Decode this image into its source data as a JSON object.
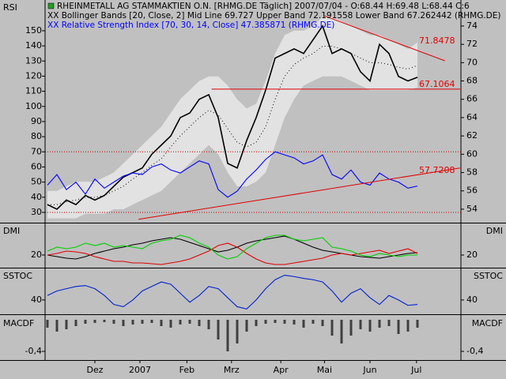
{
  "chart_data": [
    {
      "type": "line",
      "label": "RSI",
      "title": "RHEINMETALL AG STAMMAKTIEN O.N. [RHMG.DE  Täglich] 2007/07/04 - O:68.44 H:69.48 L:68.44 C:6",
      "subtitle": "XX Bollinger Bands [20, Close, 2] Mid Line 69.727  Upper Band 72.191558  Lower Band 67.262442  (RHMG.DE)",
      "subtitle2": "XX Relative Strength Index [70, 30, 14, Close] 47.385871 (RHMG.DE)",
      "x": [
        0,
        1,
        2,
        3,
        4,
        5,
        6,
        7,
        8,
        9,
        10,
        11,
        12,
        13,
        14,
        15,
        16,
        17,
        18,
        19,
        20,
        21,
        22,
        23,
        24,
        25,
        26,
        27,
        28,
        29,
        30,
        31,
        32,
        33,
        34,
        35,
        36,
        37,
        38,
        39
      ],
      "xlim": [
        0,
        39
      ],
      "xticks": [
        {
          "value": 5,
          "label": "Dez"
        },
        {
          "value": 9.75,
          "label": "2007"
        },
        {
          "value": 14.7,
          "label": "Feb"
        },
        {
          "value": 19.4,
          "label": "Mrz"
        },
        {
          "value": 24.6,
          "label": "Apr"
        },
        {
          "value": 29.2,
          "label": "Mai"
        },
        {
          "value": 34,
          "label": "Jun"
        },
        {
          "value": 38.9,
          "label": "Jul"
        }
      ],
      "ylim": [
        23.2,
        170.3
      ],
      "yticks": [
        30,
        40,
        50,
        60,
        70,
        80,
        90,
        100,
        110,
        120,
        130,
        140,
        150
      ],
      "y2lim": [
        52.53,
        76.84
      ],
      "y2ticks": [
        54,
        56,
        58,
        60,
        62,
        64,
        66,
        68,
        70,
        72,
        74
      ],
      "bands": {
        "color": "#e2e2e2",
        "axis": "y2",
        "upper": [
          56,
          56,
          56.5,
          57,
          57,
          57,
          57.5,
          58,
          59,
          60,
          61,
          62,
          63,
          64.5,
          66,
          67,
          68,
          68.5,
          68.5,
          67.5,
          66,
          65,
          65.5,
          68,
          71,
          73,
          73.5,
          73.5,
          74,
          75,
          75,
          74.5,
          74,
          73.5,
          73,
          73,
          72.5,
          72,
          71.5,
          72.2
        ],
        "lower": [
          53,
          53,
          53,
          53,
          53.5,
          53.5,
          53.5,
          54,
          54,
          54.5,
          55,
          55.5,
          56,
          57,
          58,
          59,
          60,
          61,
          60,
          58,
          56.5,
          56.5,
          57,
          58,
          61,
          64,
          66,
          67.5,
          68,
          68.5,
          68.5,
          68.5,
          68,
          67.5,
          67,
          67,
          67,
          67,
          67,
          67.3
        ],
        "mid": [
          54.5,
          54.5,
          54.8,
          55,
          55.3,
          55.3,
          55.5,
          56,
          56.5,
          57.3,
          58,
          58.8,
          59.5,
          60.8,
          62,
          63,
          64,
          64.8,
          64.3,
          62.8,
          61.3,
          60.8,
          61.3,
          63,
          66,
          68.5,
          69.8,
          70.5,
          71,
          71.8,
          71.8,
          71.5,
          71,
          70.5,
          70,
          70,
          69.8,
          69.5,
          69.3,
          69.7
        ]
      },
      "series": [
        {
          "color": "#000000",
          "axis": "y2",
          "values": [
            54.5,
            54,
            55,
            54.5,
            55.5,
            55,
            55.5,
            56.5,
            57.5,
            58,
            58.5,
            60,
            61,
            62,
            64,
            64.5,
            66,
            66.5,
            64,
            59,
            58.5,
            61.5,
            64,
            67,
            70.5,
            71,
            71.5,
            71,
            72.5,
            74,
            71,
            71.5,
            71,
            69,
            68,
            72,
            71,
            68.5,
            68,
            68.4
          ]
        },
        {
          "color": "#0000ff",
          "values": [
            48,
            55,
            45,
            50,
            42,
            52,
            46,
            50,
            54,
            56,
            55,
            60,
            62,
            58,
            56,
            60,
            64,
            62,
            45,
            40,
            44,
            52,
            58,
            65,
            70,
            68,
            66,
            62,
            64,
            68,
            55,
            52,
            58,
            50,
            48,
            56,
            52,
            50,
            46,
            47.4
          ]
        }
      ],
      "hlines": [
        70,
        30
      ],
      "hline_color": "#c00000",
      "trendlines": [
        {
          "x": [
            29.2,
            41.9
          ],
          "values": [
            75.1,
            70.2
          ],
          "label": 71.8478
        },
        {
          "x": [
            17.3,
            43.5
          ],
          "values": [
            67.1064,
            67.1064
          ],
          "label": 67.1064
        },
        {
          "x": [
            9.6,
            43.5
          ],
          "values": [
            52.9,
            58.5
          ],
          "label": 57.7208
        }
      ],
      "trend_color": "#e00000"
    },
    {
      "type": "line",
      "label": "DMI",
      "x": [
        0,
        1,
        2,
        3,
        4,
        5,
        6,
        7,
        8,
        9,
        10,
        11,
        12,
        13,
        14,
        15,
        16,
        17,
        18,
        19,
        20,
        21,
        22,
        23,
        24,
        25,
        26,
        27,
        28,
        29,
        30,
        31,
        32,
        33,
        34,
        35,
        36,
        37,
        38,
        39
      ],
      "xlim": [
        0,
        39
      ],
      "ylim": [
        5,
        60
      ],
      "yticks": [
        20
      ],
      "series": [
        {
          "color": "#000000",
          "values": [
            20,
            18,
            16,
            15,
            18,
            22,
            25,
            28,
            30,
            33,
            35,
            38,
            40,
            42,
            40,
            36,
            32,
            28,
            24,
            26,
            30,
            35,
            38,
            40,
            42,
            44,
            40,
            35,
            30,
            26,
            24,
            22,
            20,
            18,
            17,
            16,
            18,
            20,
            22,
            23
          ]
        },
        {
          "color": "#e00000",
          "values": [
            20,
            22,
            25,
            24,
            22,
            18,
            15,
            12,
            12,
            10,
            10,
            9,
            8,
            10,
            12,
            15,
            20,
            25,
            32,
            35,
            30,
            22,
            15,
            10,
            8,
            8,
            10,
            12,
            14,
            16,
            20,
            22,
            20,
            22,
            24,
            26,
            22,
            25,
            28,
            22
          ]
        },
        {
          "color": "#00d000",
          "values": [
            25,
            30,
            28,
            30,
            35,
            32,
            35,
            30,
            32,
            30,
            28,
            35,
            38,
            40,
            45,
            42,
            35,
            30,
            20,
            15,
            18,
            28,
            35,
            42,
            45,
            45,
            40,
            38,
            40,
            42,
            30,
            28,
            25,
            20,
            18,
            22,
            20,
            18,
            20,
            20
          ]
        }
      ]
    },
    {
      "type": "line",
      "label": "SSTOC",
      "x": [
        0,
        1,
        2,
        3,
        4,
        5,
        6,
        7,
        8,
        9,
        10,
        11,
        12,
        13,
        14,
        15,
        16,
        17,
        18,
        19,
        20,
        21,
        22,
        23,
        24,
        25,
        26,
        27,
        28,
        29,
        30,
        31,
        32,
        33,
        34,
        35,
        36,
        37,
        38,
        39
      ],
      "xlim": [
        0,
        39
      ],
      "ylim": [
        10,
        110
      ],
      "yticks": [
        40
      ],
      "series": [
        {
          "color": "#0020d0",
          "values": [
            50,
            60,
            65,
            70,
            72,
            65,
            50,
            30,
            25,
            40,
            60,
            70,
            80,
            75,
            55,
            35,
            50,
            70,
            65,
            45,
            25,
            20,
            40,
            65,
            85,
            95,
            92,
            88,
            85,
            80,
            60,
            35,
            55,
            65,
            45,
            30,
            50,
            40,
            28,
            30
          ]
        }
      ]
    },
    {
      "type": "bar",
      "label": "MACDF",
      "x": [
        0,
        1,
        2,
        3,
        4,
        5,
        6,
        7,
        8,
        9,
        10,
        11,
        12,
        13,
        14,
        15,
        16,
        17,
        18,
        19,
        20,
        21,
        22,
        23,
        24,
        25,
        26,
        27,
        28,
        29,
        30,
        31,
        32,
        33,
        34,
        35,
        36,
        37,
        38,
        39
      ],
      "xlim": [
        0,
        39
      ],
      "ylim": [
        -0.5,
        0.05
      ],
      "yticks": [
        {
          "value": -0.4,
          "label": "-0,4"
        }
      ],
      "color": "#404040",
      "values": [
        -0.1,
        -0.15,
        -0.12,
        -0.08,
        -0.05,
        -0.04,
        -0.03,
        -0.05,
        -0.08,
        -0.06,
        -0.05,
        -0.04,
        -0.08,
        -0.1,
        -0.06,
        -0.05,
        -0.08,
        -0.12,
        -0.25,
        -0.4,
        -0.3,
        -0.15,
        -0.08,
        -0.05,
        -0.04,
        -0.05,
        -0.06,
        -0.1,
        -0.05,
        -0.08,
        -0.2,
        -0.3,
        -0.2,
        -0.12,
        -0.15,
        -0.1,
        -0.08,
        -0.18,
        -0.15,
        -0.1
      ]
    }
  ]
}
